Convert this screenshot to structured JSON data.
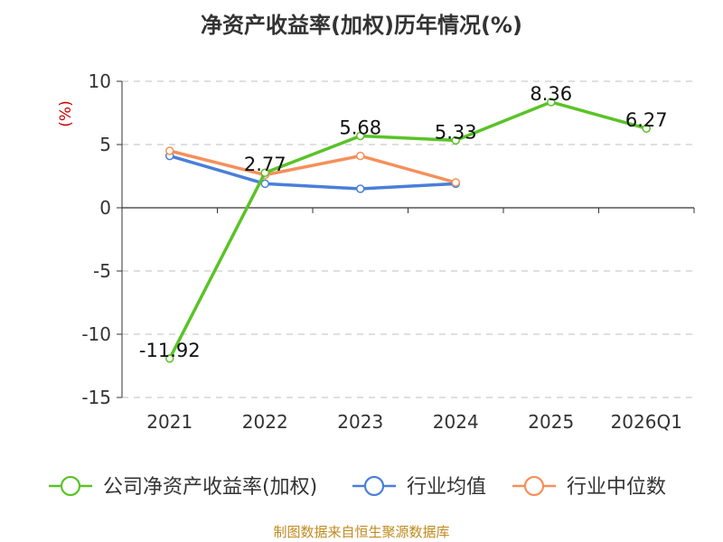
{
  "title": "净资产收益率(加权)历年情况(%)",
  "source": "制图数据来自恒生聚源数据库",
  "chart_data": {
    "type": "line",
    "title": "净资产收益率(加权)历年情况(%)",
    "ylabel": "(%)",
    "xlabel": "",
    "categories": [
      "2021",
      "2022",
      "2023",
      "2024",
      "2025",
      "2026Q1"
    ],
    "ylim": [
      -15,
      10
    ],
    "yticks": [
      10,
      5,
      0,
      -5,
      -10,
      -15
    ],
    "grid": true,
    "legend_position": "bottom",
    "series": [
      {
        "name": "公司净资产收益率(加权)",
        "color": "#5ac327",
        "values": [
          -11.92,
          2.77,
          5.68,
          5.33,
          8.36,
          6.27
        ],
        "labels": [
          "-11.92",
          "2.77",
          "5.68",
          "5.33",
          "8.36",
          "6.27"
        ]
      },
      {
        "name": "行业均值",
        "color": "#4a7fd8",
        "values": [
          4.1,
          1.9,
          1.5,
          1.9,
          null,
          null
        ]
      },
      {
        "name": "行业中位数",
        "color": "#f5905a",
        "values": [
          4.5,
          2.6,
          4.1,
          2.0,
          null,
          null
        ]
      }
    ]
  }
}
